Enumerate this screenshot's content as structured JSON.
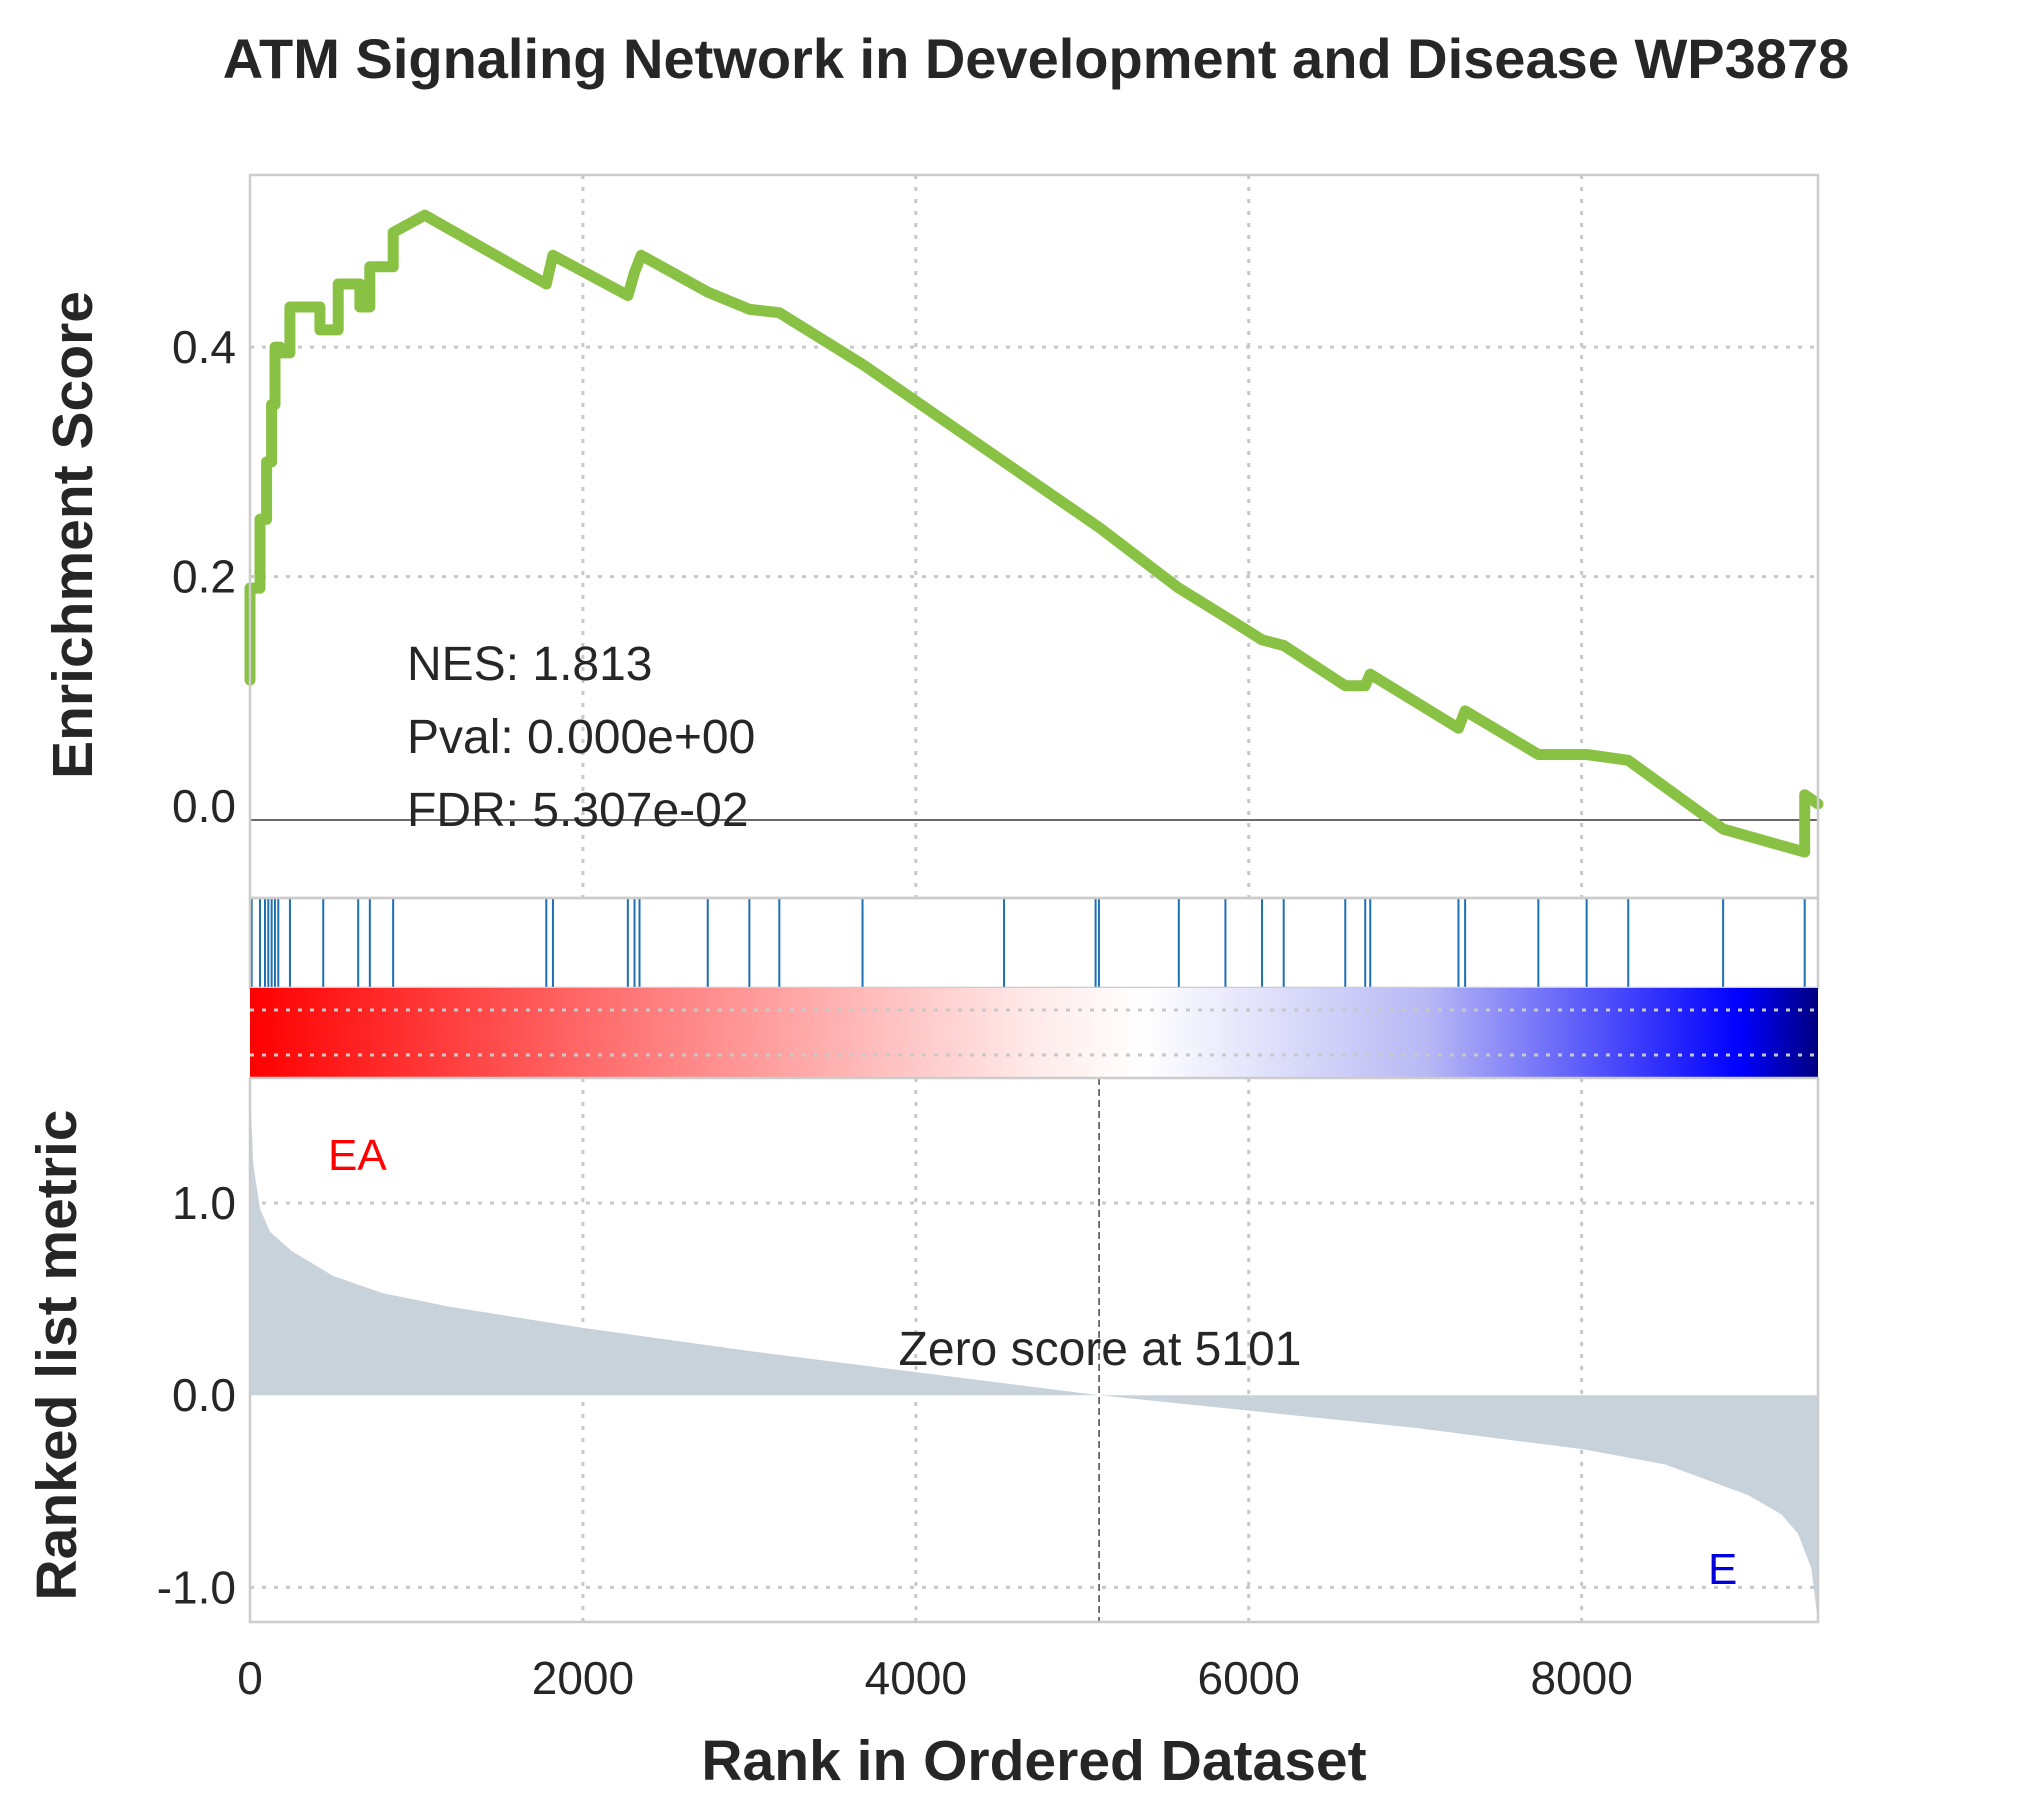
{
  "chart_data": {
    "type": "line",
    "title": "ATM Signaling Network in Development and Disease  WP3878",
    "xlabel": "Rank in Ordered Dataset",
    "ylabel_top": "Enrichment Score",
    "ylabel_bottom": "Ranked list metric",
    "xlim": [
      0,
      9420
    ],
    "x_ticks": [
      "0",
      "2000",
      "4000",
      "6000",
      "8000"
    ],
    "x_tick_values": [
      0,
      2000,
      4000,
      6000,
      8000
    ],
    "es": {
      "ylim": [
        -0.08,
        0.55
      ],
      "y_ticks": [
        "0.0",
        "0.2",
        "0.4"
      ],
      "y_tick_values": [
        0.0,
        0.2,
        0.4
      ],
      "color": "#88c144",
      "series": {
        "name": "",
        "x": [
          0,
          0,
          60,
          60,
          100,
          100,
          130,
          130,
          150,
          150,
          180,
          180,
          240,
          240,
          420,
          420,
          530,
          530,
          660,
          660,
          720,
          720,
          860,
          860,
          1050,
          1780,
          1780,
          1820,
          1820,
          2270,
          2270,
          2310,
          2310,
          2350,
          2350,
          2750,
          2750,
          3000,
          3000,
          3180,
          3180,
          3680,
          3680,
          4530,
          4530,
          5080,
          5080,
          5100,
          5100,
          5580,
          5580,
          5860,
          5860,
          6080,
          6080,
          6210,
          6210,
          6580,
          6580,
          6700,
          6700,
          6730,
          6730,
          7260,
          7260,
          7300,
          7300,
          7740,
          7740,
          8030,
          8030,
          8280,
          8280,
          8850,
          8850,
          9340,
          9340,
          9420
        ],
        "y": [
          0.11,
          0.19,
          0.19,
          0.25,
          0.25,
          0.3,
          0.3,
          0.35,
          0.35,
          0.4,
          0.4,
          0.395,
          0.395,
          0.435,
          0.435,
          0.415,
          0.415,
          0.455,
          0.455,
          0.435,
          0.435,
          0.47,
          0.47,
          0.5,
          0.515,
          0.455,
          0.455,
          0.48,
          0.48,
          0.445,
          0.445,
          0.465,
          0.465,
          0.48,
          0.48,
          0.448,
          0.448,
          0.433,
          0.433,
          0.43,
          0.43,
          0.385,
          0.385,
          0.3,
          0.3,
          0.245,
          0.245,
          0.243,
          0.243,
          0.19,
          0.19,
          0.165,
          0.165,
          0.145,
          0.145,
          0.14,
          0.14,
          0.105,
          0.105,
          0.105,
          0.105,
          0.115,
          0.115,
          0.068,
          0.068,
          0.083,
          0.083,
          0.045,
          0.045,
          0.045,
          0.045,
          0.04,
          0.04,
          -0.02,
          -0.02,
          -0.04,
          0.01,
          0.002
        ]
      }
    },
    "hits": [
      10,
      60,
      90,
      110,
      130,
      150,
      170,
      240,
      440,
      650,
      720,
      860,
      1780,
      1820,
      2270,
      2310,
      2340,
      2750,
      3000,
      3180,
      3680,
      4530,
      5080,
      5100,
      5580,
      5860,
      6080,
      6210,
      6580,
      6700,
      6730,
      7260,
      7300,
      7740,
      8030,
      8280,
      8850,
      9340
    ],
    "hit_color": "#1f6fb4",
    "heatmap": {
      "colors": [
        "#ff0000",
        "#ffffff",
        "#0000cc"
      ],
      "range": [
        0,
        9420
      ]
    },
    "ranked_metric": {
      "ylim": [
        -1.18,
        1.65
      ],
      "y_ticks": [
        "1.0",
        "0.0",
        "-1.0"
      ],
      "y_tick_values": [
        1.0,
        0.0,
        -1.0
      ],
      "fill": "#c8d2da",
      "x": [
        0,
        20,
        60,
        120,
        250,
        500,
        800,
        1200,
        2000,
        3000,
        4000,
        5101,
        6000,
        7000,
        8000,
        8500,
        9000,
        9200,
        9300,
        9380,
        9420
      ],
      "y": [
        1.6,
        1.2,
        0.97,
        0.85,
        0.75,
        0.62,
        0.53,
        0.46,
        0.35,
        0.23,
        0.12,
        0.0,
        -0.08,
        -0.17,
        -0.28,
        -0.36,
        -0.52,
        -0.62,
        -0.72,
        -0.9,
        -1.18
      ]
    },
    "zero_line_x": 5101,
    "annotations": {
      "nes": "NES: 1.813",
      "pval": "Pval: 0.000e+00",
      "fdr": "FDR: 5.307e-02",
      "zero_score": "Zero score at 5101",
      "pos_group": "EA",
      "neg_group": "E"
    },
    "colors": {
      "pos_group": "#ff0000",
      "neg_group": "#0000dd"
    },
    "grid": true
  }
}
